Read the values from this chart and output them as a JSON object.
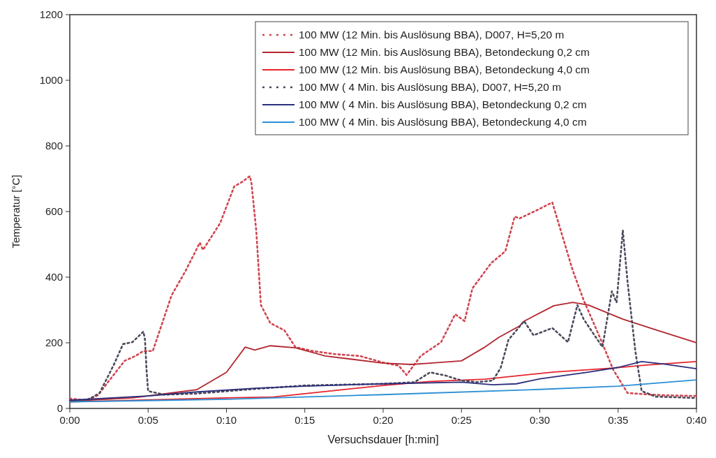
{
  "chart_data": {
    "type": "line",
    "xlabel": "Versuchsdauer [h:min]",
    "ylabel": "Temperatur [°C]",
    "xlim": [
      0,
      40
    ],
    "ylim": [
      0,
      1200
    ],
    "xticks": [
      {
        "value": 0,
        "label": "0:00"
      },
      {
        "value": 5,
        "label": "0:05"
      },
      {
        "value": 10,
        "label": "0:10"
      },
      {
        "value": 15,
        "label": "0:15"
      },
      {
        "value": 20,
        "label": "0:20"
      },
      {
        "value": 25,
        "label": "0:25"
      },
      {
        "value": 30,
        "label": "0:30"
      },
      {
        "value": 35,
        "label": "0:35"
      },
      {
        "value": 40,
        "label": "0:40"
      }
    ],
    "yticks": [
      0,
      200,
      400,
      600,
      800,
      1000,
      1200
    ],
    "grid": false,
    "legend": "top right",
    "series": [
      {
        "name": "100 MW (12 Min. bis Auslösung BBA), D007, H=5,20 m",
        "color": "#d0454f",
        "line_style": "dotted",
        "x": [
          0,
          1,
          1.8,
          2.6,
          3.5,
          4.2,
          4.7,
          5.3,
          5.9,
          6.5,
          7.4,
          8.3,
          8.5,
          9.0,
          9.6,
          10.5,
          11.0,
          11.5,
          11.6,
          11.9,
          12.2,
          12.8,
          13.7,
          14.4,
          15.5,
          17,
          18.5,
          20,
          21,
          21.5,
          22.4,
          23.7,
          24.6,
          25.2,
          25.7,
          26.9,
          27.8,
          28.4,
          28.7,
          29.9,
          30.8,
          31.2,
          32.1,
          32.8,
          33.9,
          34.7,
          35.6,
          36.8,
          38,
          40
        ],
        "values": [
          30,
          25,
          40,
          90,
          145,
          160,
          175,
          175,
          260,
          345,
          420,
          505,
          483,
          520,
          565,
          677,
          690,
          708,
          685,
          543,
          315,
          260,
          238,
          187,
          175,
          165,
          160,
          140,
          130,
          102,
          160,
          202,
          287,
          266,
          366,
          443,
          479,
          585,
          579,
          606,
          628,
          564,
          421,
          330,
          209,
          117,
          47,
          43,
          40,
          38
        ]
      },
      {
        "name": "100 MW (12 Min. bis Auslösung BBA), Betondeckung 0,2 cm",
        "color": "#b3262e",
        "line_style": "solid",
        "x": [
          0,
          4,
          8.1,
          10,
          11.2,
          11.8,
          12.8,
          14.4,
          16.3,
          18,
          20,
          21.8,
          23,
          25,
          26.5,
          27.4,
          28.7,
          29,
          30.9,
          32.1,
          33.1,
          35.3,
          37.5,
          39.9,
          40
        ],
        "values": [
          22,
          32,
          57,
          110,
          187,
          178,
          191,
          185,
          160,
          150,
          138,
          134,
          138,
          145,
          187,
          217,
          251,
          266,
          313,
          323,
          315,
          272,
          238,
          202,
          200
        ]
      },
      {
        "name": "100 MW (12 Min. bis Auslösung BBA), Betondeckung 4,0 cm",
        "color": "#e8232b",
        "line_style": "solid",
        "x": [
          0,
          10,
          13,
          17,
          20,
          23,
          26.5,
          30.9,
          34.7,
          36.8,
          40
        ],
        "values": [
          20,
          32,
          35,
          55,
          70,
          82,
          89,
          111,
          123,
          132,
          143
        ]
      },
      {
        "name": "100 MW ( 4 Min. bis Auslösung BBA), D007, H=5,20 m",
        "color": "#4a4a5c",
        "line_style": "dotted",
        "x": [
          0,
          1,
          1.9,
          2.8,
          3.4,
          4.0,
          4.7,
          4.8,
          4.9,
          5.0,
          6,
          8,
          12,
          15,
          20,
          22,
          23,
          24,
          25,
          26,
          27,
          27.5,
          28,
          29,
          29.6,
          30.8,
          31.8,
          32.4,
          32.8,
          34,
          34.6,
          34.9,
          35.3,
          35.6,
          36.1,
          36.5,
          37.4,
          39.9,
          40
        ],
        "values": [
          25,
          22,
          47,
          132,
          196,
          202,
          234,
          209,
          117,
          53,
          42,
          45,
          60,
          70,
          75,
          80,
          110,
          100,
          85,
          80,
          85,
          123,
          209,
          266,
          223,
          245,
          202,
          315,
          272,
          187,
          357,
          323,
          543,
          387,
          174,
          53,
          36,
          32,
          32
        ]
      },
      {
        "name": "100 MW ( 4 Min. bis Auslösung BBA), Betondeckung 0,2 cm",
        "color": "#2b2e7a",
        "line_style": "solid",
        "x": [
          0,
          5,
          8,
          12,
          15,
          20,
          25,
          27,
          28.5,
          30,
          33,
          35,
          36.5,
          38,
          40
        ],
        "values": [
          25,
          38,
          50,
          62,
          68,
          75,
          80,
          72,
          75,
          90,
          110,
          125,
          143,
          135,
          121
        ]
      },
      {
        "name": "100 MW ( 4 Min. bis Auslösung BBA), Betondeckung 4,0 cm",
        "color": "#2b8fd6",
        "line_style": "solid",
        "x": [
          0,
          10,
          20,
          30,
          35,
          40
        ],
        "values": [
          20,
          28,
          42,
          58,
          68,
          87
        ]
      }
    ]
  }
}
